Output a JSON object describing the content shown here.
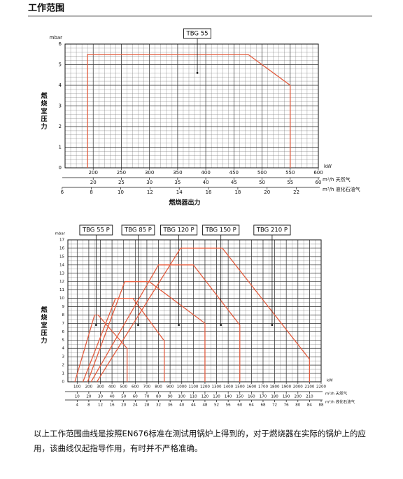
{
  "header": {
    "title": "工作范围"
  },
  "chart_data": [
    {
      "type": "line",
      "y_unit": "mbar",
      "y_label": "燃烧室压力",
      "x_unit": "kW",
      "x_title": "燃烧器出力",
      "xlim": [
        150,
        600
      ],
      "xticks": [
        200,
        250,
        300,
        350,
        400,
        450,
        500,
        550,
        600
      ],
      "ylim": [
        0,
        6
      ],
      "yticks": [
        0,
        1,
        2,
        3,
        4,
        5,
        6
      ],
      "grid": true,
      "x2": {
        "label": "m³/h 天然气",
        "lim": [
          15,
          60
        ],
        "ticks": [
          20,
          25,
          30,
          35,
          40,
          45,
          50,
          55,
          60
        ]
      },
      "x3": {
        "label": "m³/h 液化石油气",
        "lim": [
          6.2,
          23.5
        ],
        "ticks": [
          6,
          8,
          10,
          12,
          14,
          16,
          18,
          20,
          22
        ]
      },
      "series": [
        {
          "name": "TBG 55",
          "color": "#e35d3f",
          "x": [
            190,
            190,
            475,
            550,
            550
          ],
          "values": [
            0,
            5.5,
            5.5,
            4,
            0
          ],
          "marker": [
            385,
            4.6
          ]
        }
      ]
    },
    {
      "type": "line",
      "y_unit": "mbar",
      "y_label": "燃烧室压力",
      "x_unit": "kW",
      "xlim": [
        20,
        2200
      ],
      "xticks": [
        100,
        200,
        300,
        400,
        500,
        600,
        700,
        800,
        900,
        1000,
        1100,
        1200,
        1300,
        1400,
        1500,
        1600,
        1700,
        1800,
        1900,
        2000,
        2100,
        2200
      ],
      "ylim": [
        0,
        17
      ],
      "yticks": [
        0,
        1,
        2,
        3,
        4,
        5,
        6,
        7,
        8,
        9,
        10,
        11,
        12,
        13,
        14,
        15,
        16,
        17
      ],
      "grid": true,
      "x2": {
        "label": "m³/h 天然气",
        "lim": [
          2,
          220
        ],
        "ticks": [
          10,
          20,
          30,
          40,
          50,
          60,
          70,
          80,
          90,
          100,
          110,
          120,
          130,
          140,
          150,
          160,
          170,
          180,
          190,
          200,
          210
        ]
      },
      "x3": {
        "label": "m³/h 液化石油气",
        "lim": [
          0.8,
          88
        ],
        "ticks": [
          4,
          8,
          12,
          16,
          20,
          24,
          28,
          32,
          36,
          40,
          44,
          48,
          52,
          56,
          60,
          64,
          68,
          72,
          76,
          80,
          84,
          88
        ]
      },
      "series": [
        {
          "name": "TBG 55 P",
          "color": "#e35d3f",
          "x": [
            80,
            250,
            280,
            530,
            530
          ],
          "values": [
            0,
            8,
            8,
            4,
            0
          ],
          "marker": [
            263,
            6.8
          ]
        },
        {
          "name": "TBG 85 P",
          "color": "#e35d3f",
          "x": [
            150,
            430,
            580,
            850,
            850
          ],
          "values": [
            0,
            10,
            10,
            4.9,
            0
          ],
          "marker": [
            625,
            6.8
          ]
        },
        {
          "name": "TBG 120 P",
          "color": "#e35d3f",
          "x": [
            190,
            510,
            720,
            1200,
            1200
          ],
          "values": [
            0,
            12,
            12,
            7,
            0
          ],
          "marker": [
            975,
            6.8
          ]
        },
        {
          "name": "TBG 150 P",
          "color": "#e35d3f",
          "x": [
            220,
            800,
            1100,
            1500,
            1500
          ],
          "values": [
            0,
            14,
            14,
            6.8,
            0
          ],
          "marker": [
            1337,
            6.8
          ]
        },
        {
          "name": "TBG 210 P",
          "color": "#e35d3f",
          "x": [
            270,
            990,
            1350,
            2100,
            2100
          ],
          "values": [
            0,
            16,
            16,
            2.7,
            0
          ],
          "marker": [
            1778,
            6.8
          ]
        }
      ]
    }
  ],
  "footer": {
    "text": "以上工作范围曲线是按照EN676标准在测试用锅炉上得到的，对于燃烧器在实际的锅炉上的应用，该曲线仅起指导作用，有时并不严格准确。"
  }
}
